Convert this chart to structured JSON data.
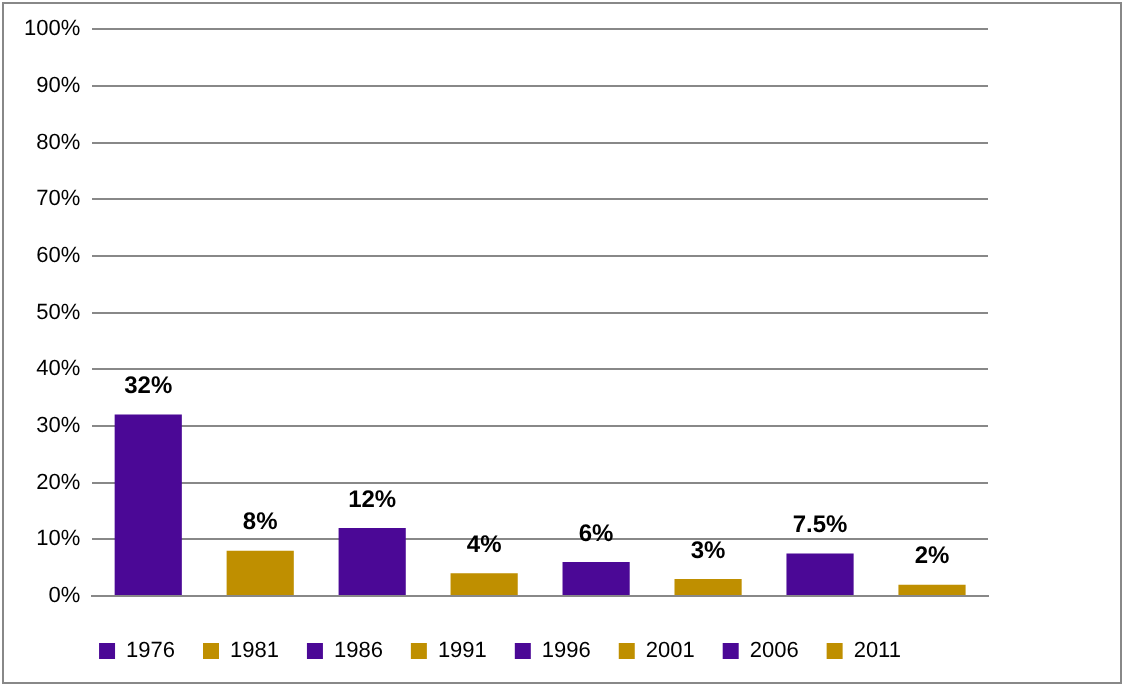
{
  "chart_data": {
    "type": "bar",
    "categories": [
      null,
      null,
      null,
      null,
      null,
      null,
      null,
      null
    ],
    "series": [
      {
        "name": "1976",
        "color": "#4b0896",
        "values": [
          32,
          null,
          null,
          null,
          null,
          null,
          null,
          null
        ],
        "value_labels": [
          "32%",
          null,
          null,
          null,
          null,
          null,
          null,
          null
        ]
      },
      {
        "name": "1981",
        "color": "#bf8f00",
        "values": [
          null,
          8,
          null,
          null,
          null,
          null,
          null,
          null
        ],
        "value_labels": [
          null,
          "8%",
          null,
          null,
          null,
          null,
          null,
          null
        ]
      },
      {
        "name": "1986",
        "color": "#4b0896",
        "values": [
          null,
          null,
          12,
          null,
          null,
          null,
          null,
          null
        ],
        "value_labels": [
          null,
          null,
          "12%",
          null,
          null,
          null,
          null,
          null
        ]
      },
      {
        "name": "1991",
        "color": "#bf8f00",
        "values": [
          null,
          null,
          null,
          4,
          null,
          null,
          null,
          null
        ],
        "value_labels": [
          null,
          null,
          null,
          "4%",
          null,
          null,
          null,
          null
        ]
      },
      {
        "name": "1996",
        "color": "#4b0896",
        "values": [
          null,
          null,
          null,
          null,
          6,
          null,
          null,
          null
        ],
        "value_labels": [
          null,
          null,
          null,
          null,
          "6%",
          null,
          null,
          null
        ]
      },
      {
        "name": "2001",
        "color": "#bf8f00",
        "values": [
          null,
          null,
          null,
          null,
          null,
          3,
          null,
          null
        ],
        "value_labels": [
          null,
          null,
          null,
          null,
          null,
          "3%",
          null,
          null
        ]
      },
      {
        "name": "2006",
        "color": "#4b0896",
        "values": [
          null,
          null,
          null,
          null,
          null,
          null,
          7.5,
          null
        ],
        "value_labels": [
          null,
          null,
          null,
          null,
          null,
          null,
          "7.5%",
          null
        ]
      },
      {
        "name": "2011",
        "color": "#bf8f00",
        "values": [
          null,
          null,
          null,
          null,
          null,
          null,
          null,
          2
        ],
        "value_labels": [
          null,
          null,
          null,
          null,
          null,
          null,
          null,
          "2%"
        ]
      }
    ],
    "ylim": [
      0,
      100
    ],
    "yticks": [
      {
        "value": 0,
        "label": "0%"
      },
      {
        "value": 10,
        "label": "10%"
      },
      {
        "value": 20,
        "label": "20%"
      },
      {
        "value": 30,
        "label": "30%"
      },
      {
        "value": 40,
        "label": "40%"
      },
      {
        "value": 50,
        "label": "50%"
      },
      {
        "value": 60,
        "label": "60%"
      },
      {
        "value": 70,
        "label": "70%"
      },
      {
        "value": 80,
        "label": "80%"
      },
      {
        "value": 90,
        "label": "90%"
      },
      {
        "value": 100,
        "label": "100%"
      }
    ],
    "grid": "y",
    "legend": "bottom",
    "tick_labels": "y"
  }
}
